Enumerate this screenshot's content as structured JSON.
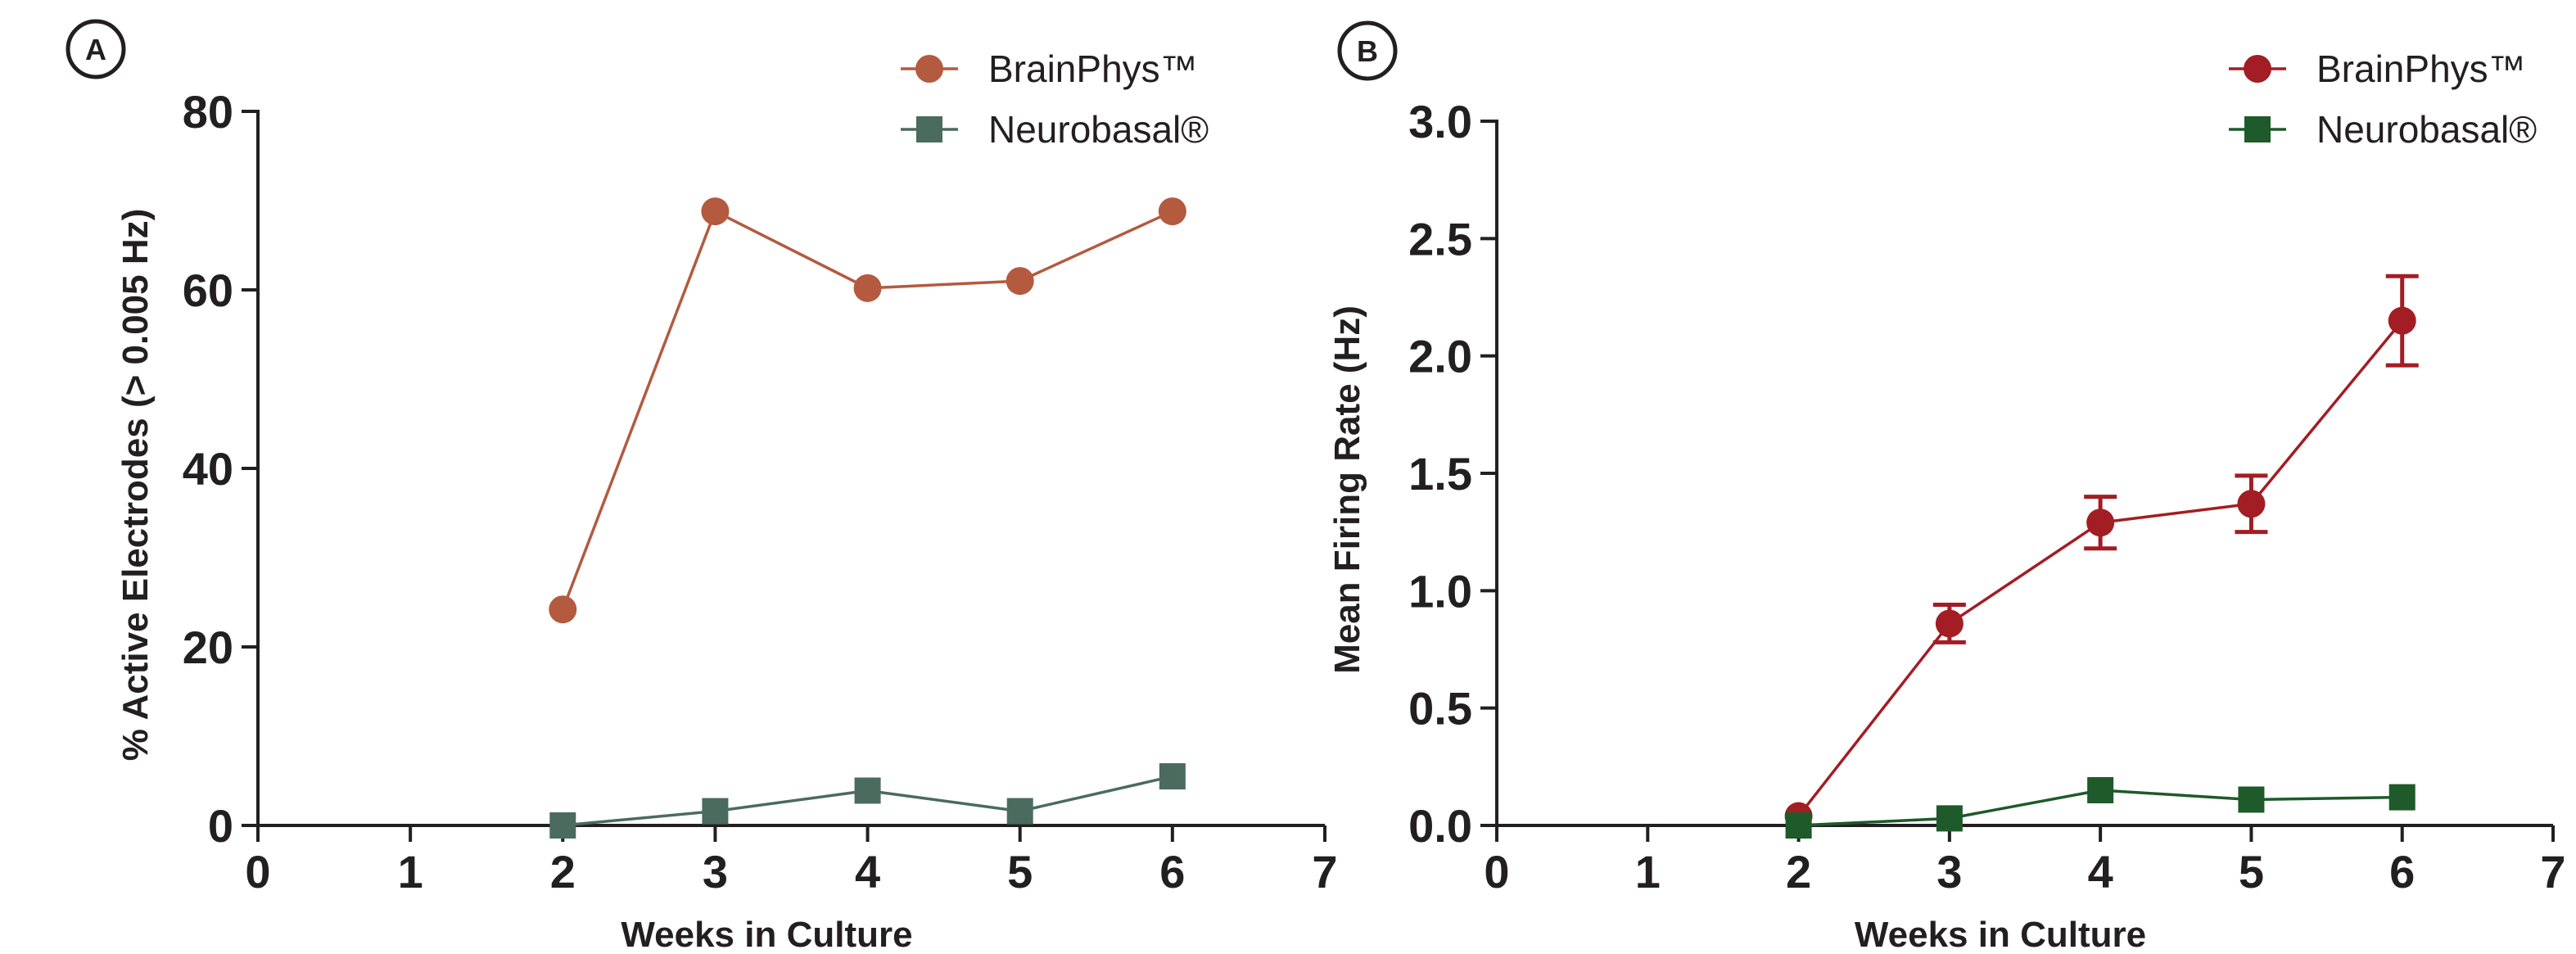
{
  "panels": [
    {
      "label": "A",
      "xlabel": "Weeks in Culture",
      "ylabel": "% Active Electrodes (> 0.005 Hz)"
    },
    {
      "label": "B",
      "xlabel": "Weeks in Culture",
      "ylabel": "Mean Firing Rate (Hz)"
    }
  ],
  "chart_data": [
    {
      "type": "line",
      "panel": "A",
      "xlabel": "Weeks in Culture",
      "ylabel": "% Active Electrodes (> 0.005 Hz)",
      "xlim": [
        0,
        7
      ],
      "ylim": [
        0,
        80
      ],
      "xticks": [
        "0",
        "1",
        "2",
        "3",
        "4",
        "5",
        "6",
        "7"
      ],
      "yticks": [
        "0",
        "20",
        "40",
        "60",
        "80"
      ],
      "legend_position": "top-right",
      "series": [
        {
          "name": "BrainPhys™",
          "marker": "circle",
          "color": "#b35a3f",
          "x": [
            2,
            3,
            4,
            5,
            6
          ],
          "y": [
            24.2,
            68.8,
            60.2,
            61.0,
            68.8
          ]
        },
        {
          "name": "Neurobasal®",
          "marker": "square",
          "color": "#4a6b5e",
          "x": [
            2,
            3,
            4,
            5,
            6
          ],
          "y": [
            0.0,
            1.6,
            3.9,
            1.6,
            5.5
          ]
        }
      ]
    },
    {
      "type": "line",
      "panel": "B",
      "xlabel": "Weeks in Culture",
      "ylabel": "Mean Firing Rate (Hz)",
      "xlim": [
        0,
        7
      ],
      "ylim": [
        0,
        3
      ],
      "xticks": [
        "0",
        "1",
        "2",
        "3",
        "4",
        "5",
        "6",
        "7"
      ],
      "yticks": [
        "0.0",
        "0.5",
        "1.0",
        "1.5",
        "2.0",
        "2.5",
        "3.0"
      ],
      "legend_position": "top-right",
      "series": [
        {
          "name": "BrainPhys™",
          "marker": "circle",
          "color": "#a31d24",
          "x": [
            2,
            3,
            4,
            5,
            6
          ],
          "y": [
            0.04,
            0.86,
            1.29,
            1.37,
            2.15
          ],
          "error": [
            0.0,
            0.08,
            0.11,
            0.12,
            0.19
          ]
        },
        {
          "name": "Neurobasal®",
          "marker": "square",
          "color": "#1e5a2a",
          "x": [
            2,
            3,
            4,
            5,
            6
          ],
          "y": [
            0.0,
            0.03,
            0.15,
            0.11,
            0.12
          ],
          "error": [
            0.0,
            0.0,
            0.0,
            0.0,
            0.0
          ]
        }
      ]
    }
  ]
}
